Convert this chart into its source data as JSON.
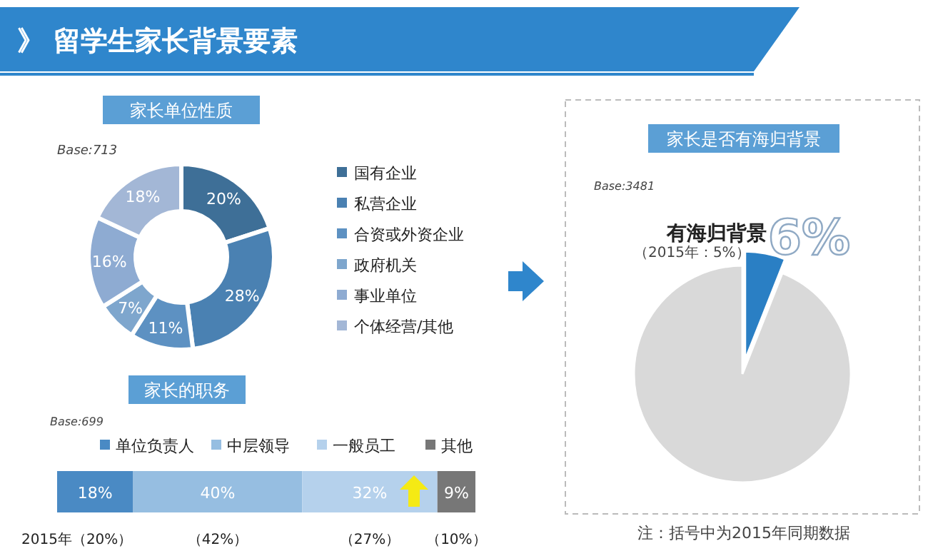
{
  "chart_data": [
    {
      "type": "other",
      "title": "》 留学生家长背景要素"
    },
    {
      "type": "donut",
      "title": "家长单位性质",
      "annotations": [
        "Base:713"
      ],
      "legend": "right",
      "categories": [
        "国有企业",
        "私营企业",
        "合资或外资企业",
        "政府机关",
        "事业单位",
        "个体经营/其他"
      ],
      "values": [
        20,
        28,
        11,
        7,
        16,
        18
      ],
      "value_labels": [
        "20%",
        "28%",
        "11%",
        "7%",
        "16%",
        "18%"
      ],
      "colors": [
        "#3e6f97",
        "#4a81b2",
        "#5d91c2",
        "#7ea6cd",
        "#8eabd2",
        "#a3b7d6"
      ]
    },
    {
      "type": "bar",
      "orientation": "horizontal",
      "stacked": true,
      "title": "家长的职务",
      "legend": "top",
      "categories": [
        null
      ],
      "annotations": [
        "Base:699",
        "2015年（20%）",
        "（42%）",
        "（27%）",
        "（10%）"
      ],
      "series": [
        {
          "name": "单位负责人",
          "color": "#4a8ac4",
          "values": [
            18
          ],
          "value_labels": [
            "18%"
          ]
        },
        {
          "name": "中层领导",
          "color": "#96bee1",
          "values": [
            40
          ],
          "value_labels": [
            "40%"
          ]
        },
        {
          "name": "一般员工",
          "color": "#b5d1ec",
          "values": [
            32
          ],
          "value_labels": [
            "32%"
          ]
        },
        {
          "name": "其他",
          "color": "#777777",
          "values": [
            9
          ],
          "value_labels": [
            "9%"
          ]
        }
      ]
    },
    {
      "type": "pie",
      "title": "家长是否有海归背景",
      "categories": [
        "有海归背景",
        null
      ],
      "values": [
        6,
        94
      ],
      "value_labels": [
        "6%",
        null
      ],
      "colors": [
        "#2a7fc4",
        "#d9d9d9"
      ],
      "annotations": [
        "Base:3481",
        "（2015年：5%）",
        "注：括号中为2015年同期数据"
      ]
    }
  ]
}
